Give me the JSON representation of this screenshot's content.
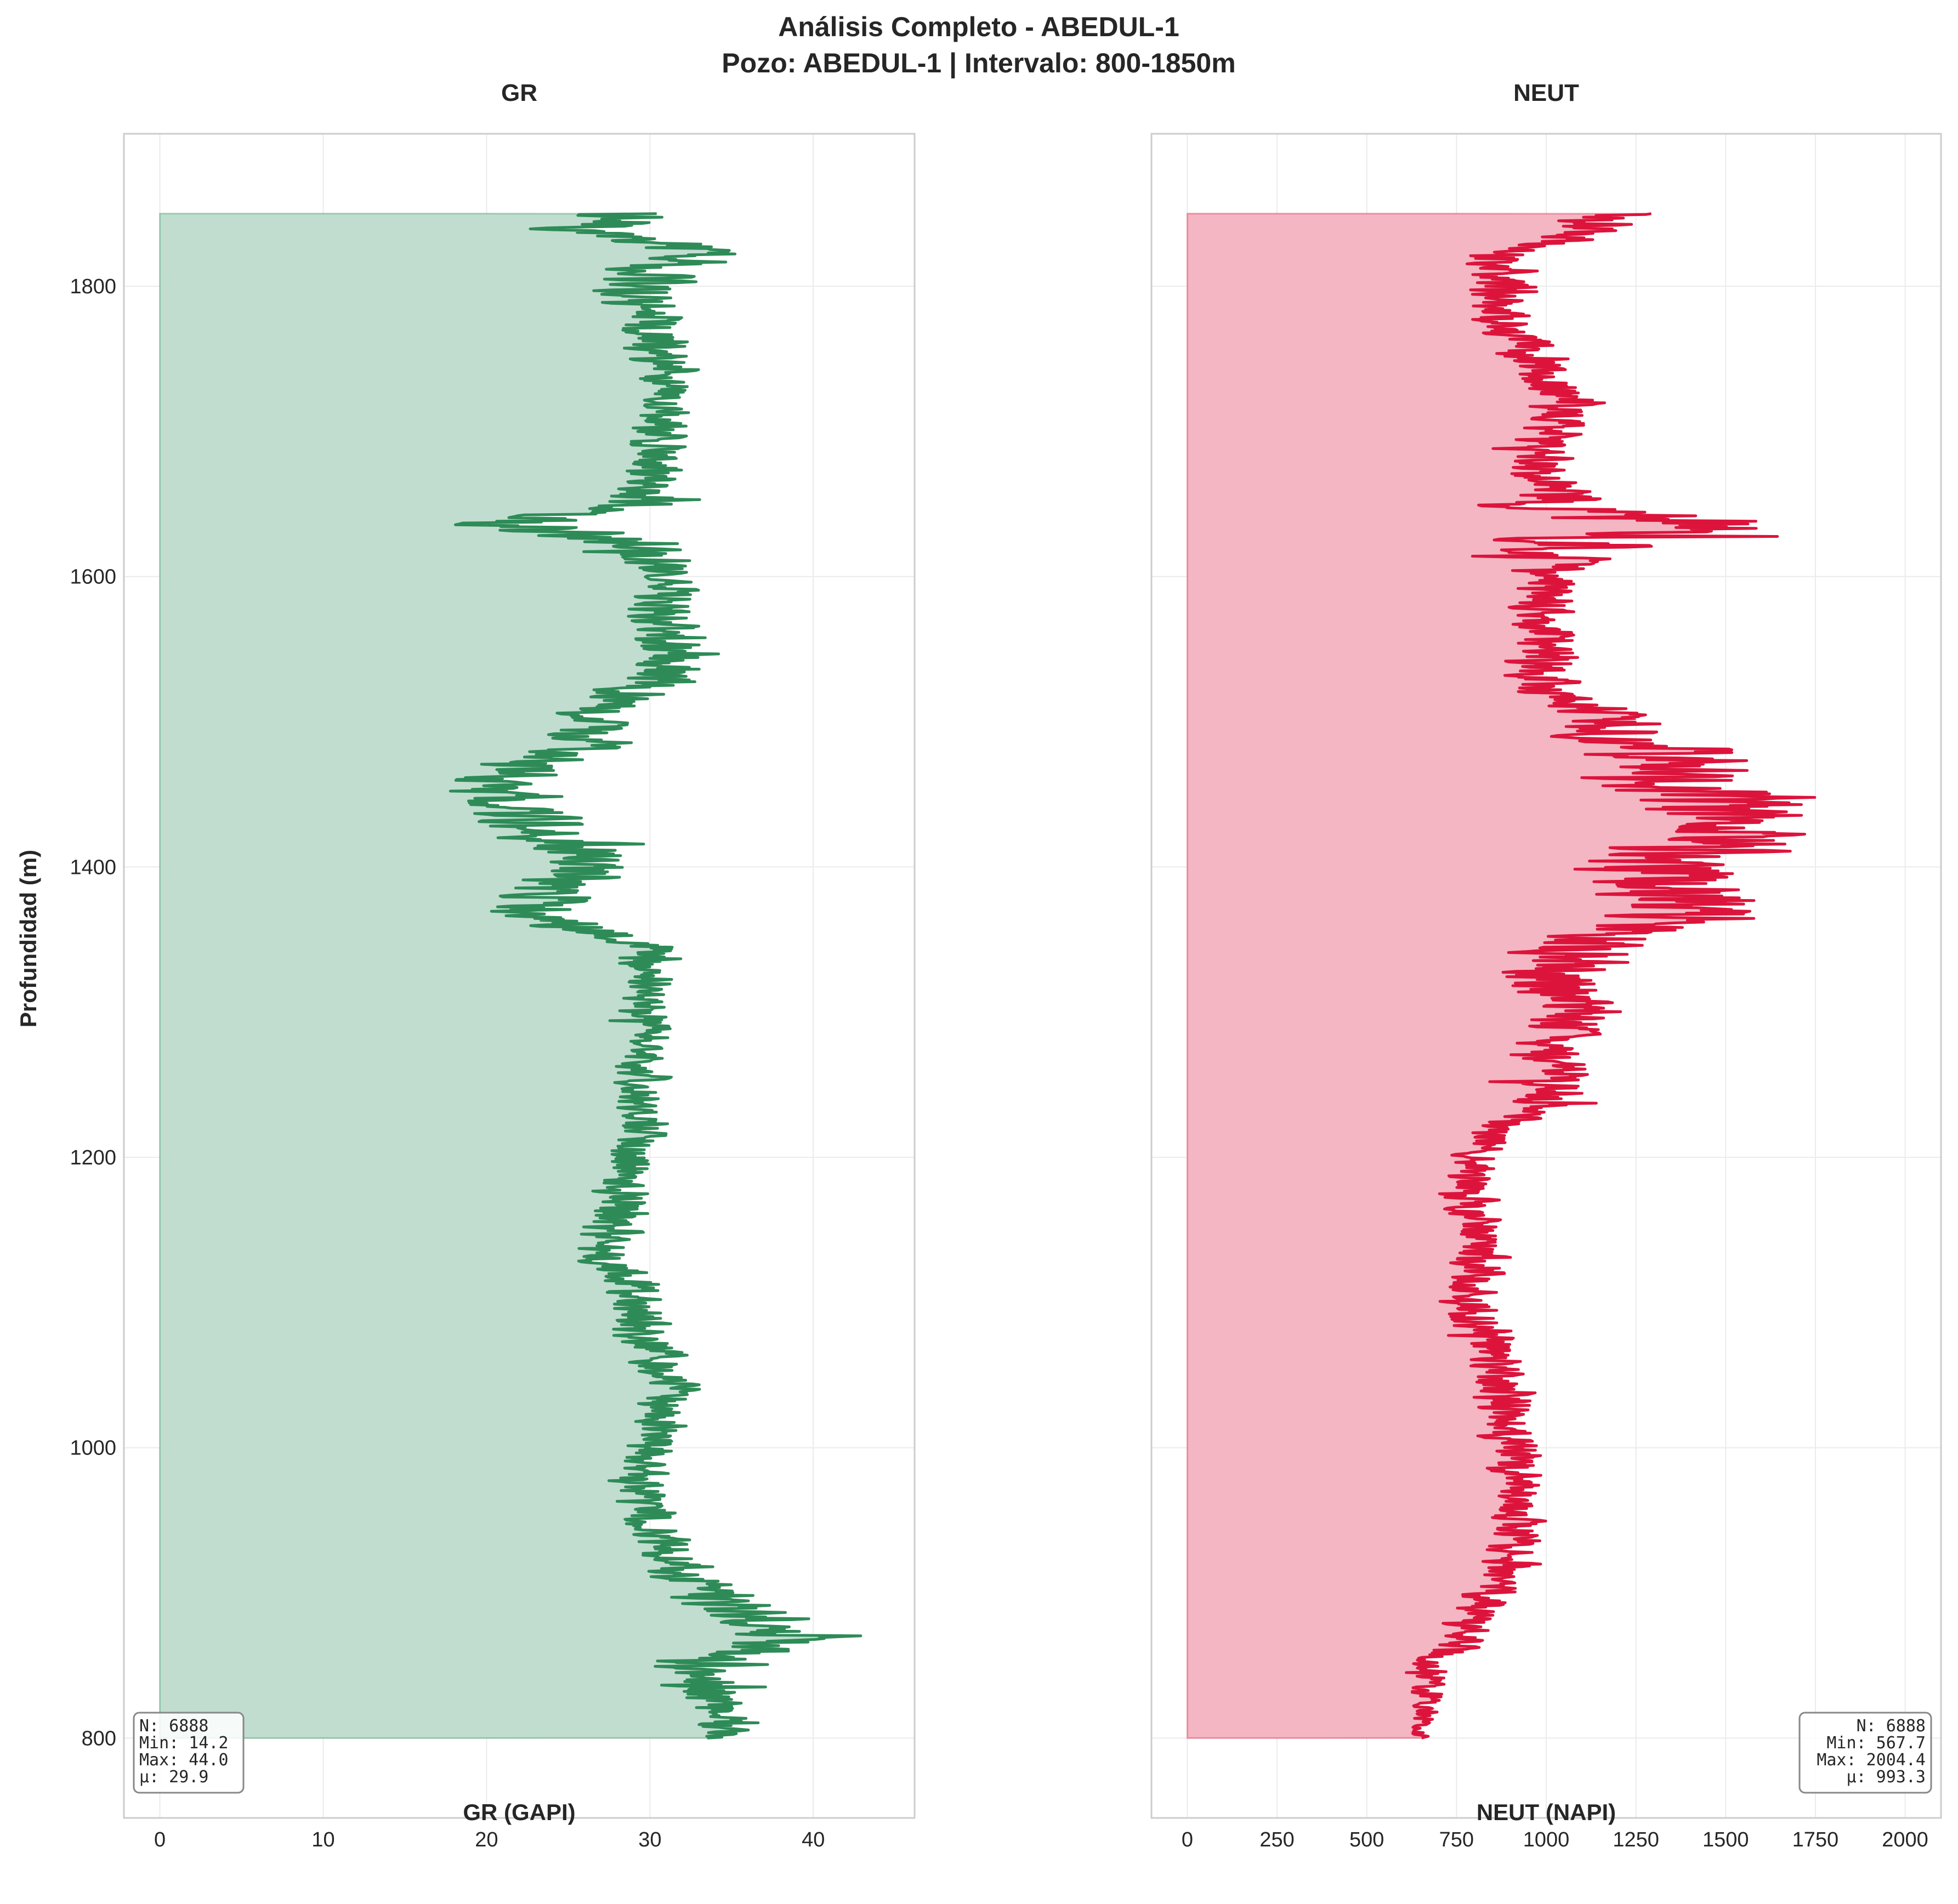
{
  "figure": {
    "title_line1": "Análisis Completo - ABEDUL-1",
    "title_line2": "Pozo: ABEDUL-1 | Intervalo: 800-1850m",
    "ylabel": "Profundidad (m)"
  },
  "chart_data": [
    {
      "type": "line",
      "title": "GR",
      "xlabel": "GR (GAPI)",
      "ylabel": "Profundidad (m)",
      "xlim": [
        -2.2,
        46.2
      ],
      "ylim": [
        745,
        1905
      ],
      "xticks": [
        0,
        10,
        20,
        30,
        40
      ],
      "yticks": [
        800,
        1000,
        1200,
        1400,
        1600,
        1800
      ],
      "grid": true,
      "fill_to_zero": true,
      "color": "#2e8b57",
      "fill_color": "#c1ddd0",
      "stats": {
        "n": "N: 6888",
        "min": "Min: 14.2",
        "max": "Max: 44.0",
        "mean": "μ: 29.9"
      },
      "stats_position": "bottom-left",
      "depth_range": [
        800,
        1850
      ],
      "profile": [
        [
          800,
          34.5
        ],
        [
          820,
          34.0
        ],
        [
          840,
          33.0
        ],
        [
          855,
          35.0
        ],
        [
          865,
          37.5
        ],
        [
          875,
          38.5
        ],
        [
          885,
          36.5
        ],
        [
          895,
          34.0
        ],
        [
          910,
          32.5
        ],
        [
          925,
          31.5
        ],
        [
          940,
          30.5
        ],
        [
          960,
          29.5
        ],
        [
          980,
          29.0
        ],
        [
          1000,
          30.0
        ],
        [
          1020,
          30.5
        ],
        [
          1040,
          31.0
        ],
        [
          1060,
          30.5
        ],
        [
          1080,
          29.5
        ],
        [
          1100,
          29.5
        ],
        [
          1120,
          28.5
        ],
        [
          1140,
          27.5
        ],
        [
          1160,
          28.0
        ],
        [
          1180,
          28.5
        ],
        [
          1200,
          29.0
        ],
        [
          1220,
          29.5
        ],
        [
          1240,
          29.0
        ],
        [
          1260,
          29.5
        ],
        [
          1280,
          30.0
        ],
        [
          1300,
          29.5
        ],
        [
          1320,
          30.0
        ],
        [
          1340,
          30.0
        ],
        [
          1350,
          29.5
        ],
        [
          1360,
          24.5
        ],
        [
          1370,
          23.0
        ],
        [
          1380,
          22.5
        ],
        [
          1390,
          24.0
        ],
        [
          1400,
          26.5
        ],
        [
          1410,
          26.0
        ],
        [
          1420,
          24.0
        ],
        [
          1430,
          23.0
        ],
        [
          1440,
          22.5
        ],
        [
          1450,
          21.5
        ],
        [
          1460,
          21.0
        ],
        [
          1470,
          22.5
        ],
        [
          1480,
          25.5
        ],
        [
          1490,
          26.5
        ],
        [
          1500,
          26.5
        ],
        [
          1510,
          27.5
        ],
        [
          1520,
          28.5
        ],
        [
          1530,
          30.5
        ],
        [
          1540,
          31.5
        ],
        [
          1550,
          32.0
        ],
        [
          1560,
          31.5
        ],
        [
          1570,
          31.0
        ],
        [
          1580,
          30.5
        ],
        [
          1590,
          31.0
        ],
        [
          1600,
          31.0
        ],
        [
          1610,
          30.5
        ],
        [
          1620,
          31.5
        ],
        [
          1628,
          26.0
        ],
        [
          1636,
          21.0
        ],
        [
          1642,
          25.0
        ],
        [
          1650,
          30.0
        ],
        [
          1660,
          30.0
        ],
        [
          1680,
          30.5
        ],
        [
          1700,
          30.5
        ],
        [
          1720,
          31.0
        ],
        [
          1740,
          31.0
        ],
        [
          1760,
          30.5
        ],
        [
          1780,
          30.0
        ],
        [
          1800,
          30.0
        ],
        [
          1815,
          30.5
        ],
        [
          1825,
          33.0
        ],
        [
          1832,
          29.5
        ],
        [
          1840,
          25.5
        ],
        [
          1845,
          28.5
        ],
        [
          1850,
          29.0
        ]
      ],
      "amplitude": [
        [
          800,
          1.2
        ],
        [
          850,
          3.0
        ],
        [
          880,
          3.0
        ],
        [
          920,
          1.6
        ],
        [
          1000,
          1.4
        ],
        [
          1150,
          1.8
        ],
        [
          1200,
          1.4
        ],
        [
          1340,
          1.2
        ],
        [
          1360,
          3.0
        ],
        [
          1400,
          2.8
        ],
        [
          1460,
          3.0
        ],
        [
          1500,
          2.0
        ],
        [
          1540,
          2.4
        ],
        [
          1600,
          1.6
        ],
        [
          1640,
          3.5
        ],
        [
          1660,
          1.6
        ],
        [
          1750,
          1.5
        ],
        [
          1830,
          3.0
        ],
        [
          1850,
          3.0
        ]
      ]
    },
    {
      "type": "line",
      "title": "NEUT",
      "xlabel": "NEUT (NAPI)",
      "xlim": [
        -100,
        2100
      ],
      "ylim": [
        745,
        1905
      ],
      "xticks": [
        0,
        250,
        500,
        750,
        1000,
        1250,
        1500,
        1750,
        2000
      ],
      "yticks": [
        800,
        1000,
        1200,
        1400,
        1600,
        1800
      ],
      "grid": true,
      "fill_to_zero": true,
      "color": "#dc143c",
      "fill_color": "#f4b6c3",
      "stats": {
        "n": "N: 6888",
        "min": "Min: 567.7",
        "max": "Max: 2004.4",
        "mean": "μ: 993.3"
      },
      "stats_position": "bottom-right",
      "depth_range": [
        800,
        1850
      ],
      "profile": [
        [
          800,
          650
        ],
        [
          830,
          665
        ],
        [
          850,
          690
        ],
        [
          865,
          760
        ],
        [
          880,
          800
        ],
        [
          895,
          840
        ],
        [
          910,
          880
        ],
        [
          930,
          910
        ],
        [
          960,
          920
        ],
        [
          1000,
          900
        ],
        [
          1030,
          880
        ],
        [
          1060,
          860
        ],
        [
          1080,
          830
        ],
        [
          1100,
          790
        ],
        [
          1120,
          800
        ],
        [
          1140,
          830
        ],
        [
          1160,
          800
        ],
        [
          1180,
          780
        ],
        [
          1200,
          800
        ],
        [
          1220,
          880
        ],
        [
          1240,
          1000
        ],
        [
          1260,
          1050
        ],
        [
          1280,
          1030
        ],
        [
          1300,
          1060
        ],
        [
          1320,
          1000
        ],
        [
          1340,
          1080
        ],
        [
          1355,
          1250
        ],
        [
          1370,
          1450
        ],
        [
          1390,
          1300
        ],
        [
          1405,
          1350
        ],
        [
          1420,
          1500
        ],
        [
          1440,
          1500
        ],
        [
          1460,
          1400
        ],
        [
          1475,
          1350
        ],
        [
          1490,
          1200
        ],
        [
          1505,
          1150
        ],
        [
          1520,
          1000
        ],
        [
          1540,
          990
        ],
        [
          1560,
          1000
        ],
        [
          1580,
          1000
        ],
        [
          1600,
          1000
        ],
        [
          1615,
          990
        ],
        [
          1628,
          1150
        ],
        [
          1636,
          1400
        ],
        [
          1645,
          1050
        ],
        [
          1660,
          1000
        ],
        [
          1680,
          980
        ],
        [
          1700,
          1000
        ],
        [
          1720,
          1060
        ],
        [
          1740,
          1000
        ],
        [
          1760,
          930
        ],
        [
          1780,
          890
        ],
        [
          1800,
          880
        ],
        [
          1820,
          870
        ],
        [
          1835,
          1040
        ],
        [
          1850,
          1200
        ]
      ],
      "amplitude": [
        [
          800,
          30
        ],
        [
          850,
          50
        ],
        [
          900,
          70
        ],
        [
          1000,
          70
        ],
        [
          1100,
          70
        ],
        [
          1200,
          60
        ],
        [
          1260,
          80
        ],
        [
          1350,
          180
        ],
        [
          1400,
          220
        ],
        [
          1460,
          230
        ],
        [
          1490,
          150
        ],
        [
          1520,
          90
        ],
        [
          1600,
          80
        ],
        [
          1636,
          280
        ],
        [
          1660,
          80
        ],
        [
          1750,
          80
        ],
        [
          1830,
          90
        ],
        [
          1850,
          120
        ]
      ]
    }
  ]
}
